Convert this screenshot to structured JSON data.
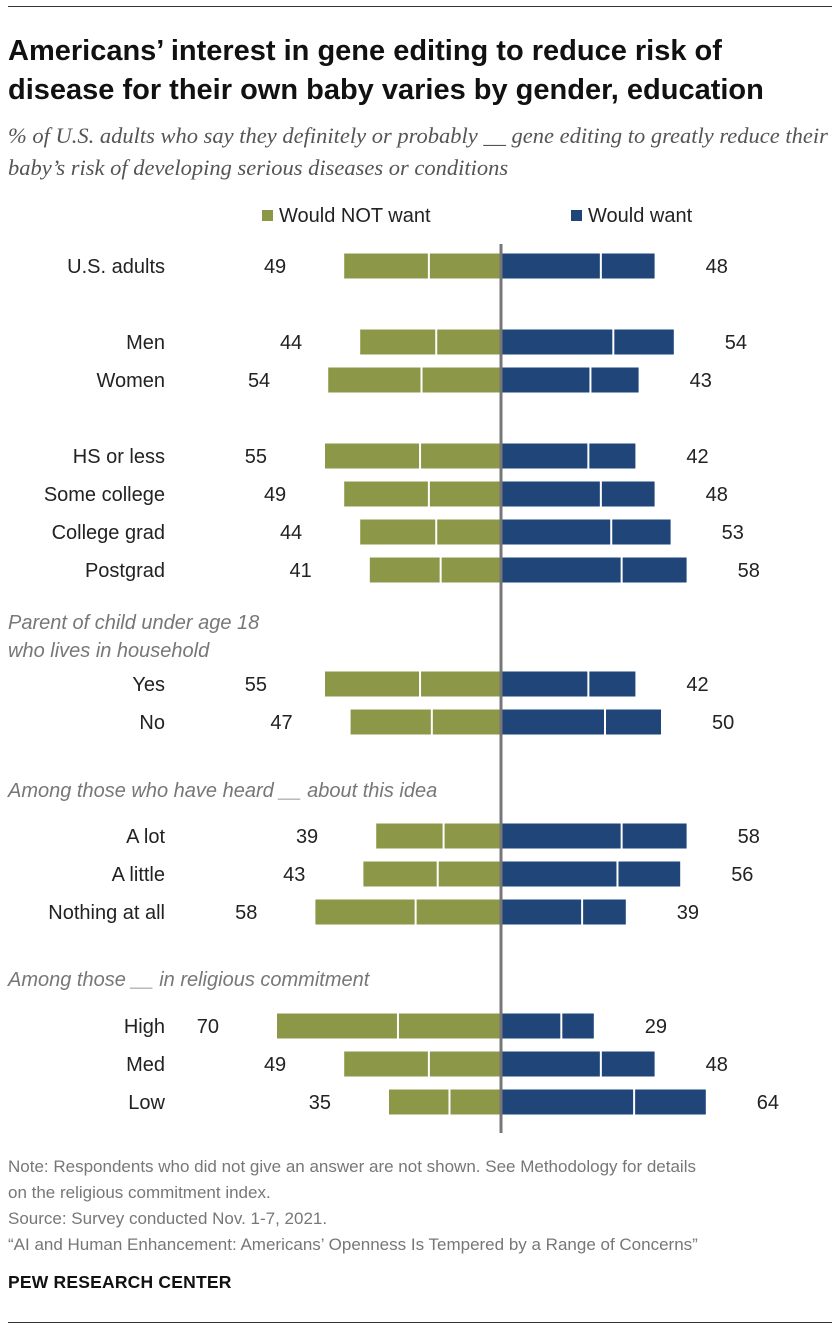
{
  "title": "Americans’ interest in gene editing to reduce risk of disease for their own baby varies by gender, education",
  "subtitle": "% of U.S. adults who say they definitely or probably __ gene editing to greatly reduce their baby’s risk of developing serious diseases or conditions",
  "legend": {
    "not_want": "Would NOT want",
    "want": "Would want"
  },
  "colors": {
    "not_want": "#8c9748",
    "want": "#1f4579",
    "axis": "#777777"
  },
  "chart_data": {
    "type": "bar",
    "orientation": "horizontal-diverging",
    "series": [
      {
        "name": "Would NOT want",
        "values": [
          49,
          44,
          54,
          55,
          49,
          44,
          41,
          55,
          47,
          39,
          43,
          58,
          70,
          49,
          35
        ]
      },
      {
        "name": "Would want",
        "values": [
          48,
          54,
          43,
          42,
          48,
          53,
          58,
          42,
          50,
          58,
          56,
          39,
          29,
          48,
          64
        ]
      }
    ],
    "categories": [
      "U.S. adults",
      "Men",
      "Women",
      "HS or less",
      "Some college",
      "College grad",
      "Postgrad",
      "Yes",
      "No",
      "A lot",
      "A little",
      "Nothing at all",
      "High",
      "Med",
      "Low"
    ],
    "group_headers": [
      {
        "before": "Yes",
        "text": "Parent of child under age 18 who lives in household"
      },
      {
        "before": "A lot",
        "text": "Among those who have heard __ about this idea"
      },
      {
        "before": "High",
        "text": "Among those __ in religious commitment"
      }
    ],
    "grid": false,
    "legend_position": "top"
  },
  "notes": {
    "note_line1": "Note: Respondents who did not give an answer are not shown. See Methodology for details",
    "note_line2": "on the religious commitment index.",
    "source": "Source: Survey conducted Nov. 1-7, 2021.",
    "report": "“AI and Human Enhancement: Americans’ Openness Is Tempered by a Range of Concerns”",
    "org": "PEW RESEARCH CENTER"
  }
}
